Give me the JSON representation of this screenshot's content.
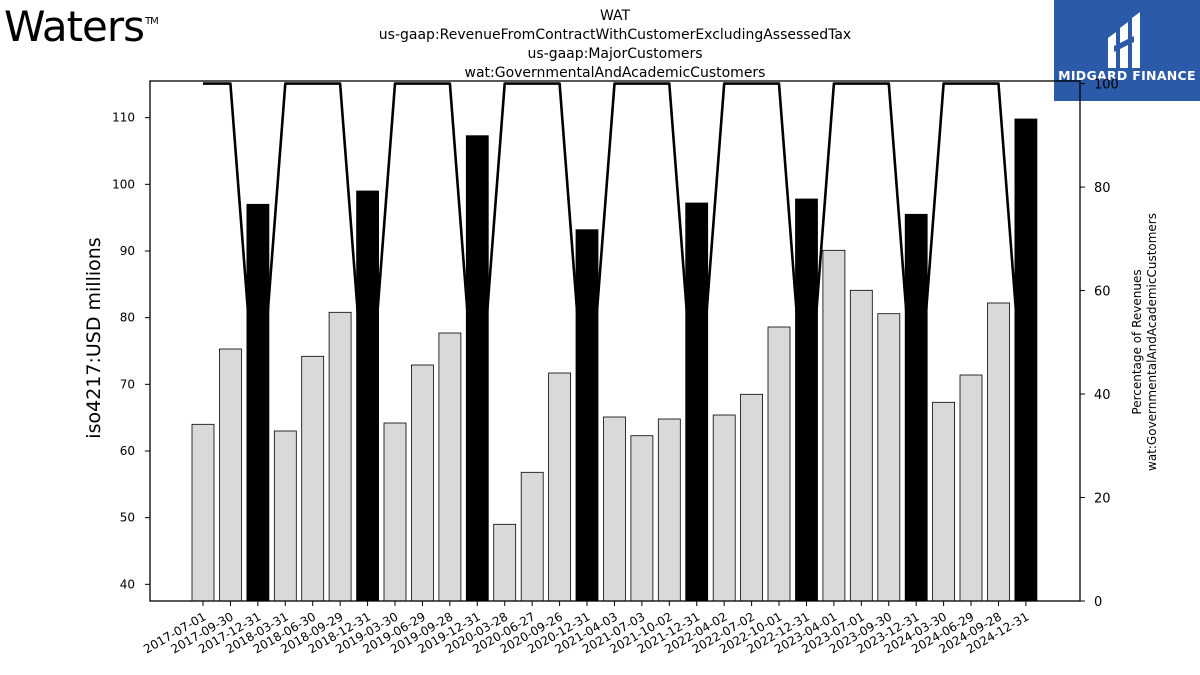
{
  "header": {
    "logo_text": "Waters",
    "logo_mark": "TM",
    "title_lines": [
      "WAT",
      "us-gaap:RevenueFromContractWithCustomerExcludingAssessedTax",
      "us-gaap:MajorCustomers",
      "wat:GovernmentalAndAcademicCustomers"
    ]
  },
  "brand": {
    "name": "MIDGARD FINANCE",
    "background": "#2b5aa8"
  },
  "chart_data": {
    "type": "bar",
    "ylabel": "iso4217:USD  millions",
    "y2label": [
      "Percentage of Revenues",
      "wat:GovernmentalAndAcademicCustomers"
    ],
    "ylim": [
      37.5,
      115.5
    ],
    "yticks": [
      40,
      50,
      60,
      70,
      80,
      90,
      100,
      110
    ],
    "y2lim": [
      0,
      100.5
    ],
    "y2ticks": [
      0,
      20,
      40,
      60,
      80,
      100
    ],
    "colors": {
      "quarter_bar": "#d9d9d9",
      "annual_bar": "#000000",
      "line": "#000000"
    },
    "categories": [
      "2017-07-01",
      "2017-09-30",
      "2017-12-31",
      "2018-03-31",
      "2018-06-30",
      "2018-09-29",
      "2018-12-31",
      "2019-03-30",
      "2019-06-29",
      "2019-09-28",
      "2019-12-31",
      "2020-03-28",
      "2020-06-27",
      "2020-09-26",
      "2020-12-31",
      "2021-04-03",
      "2021-07-03",
      "2021-10-02",
      "2021-12-31",
      "2022-04-02",
      "2022-07-02",
      "2022-10-01",
      "2022-12-31",
      "2023-04-01",
      "2023-07-01",
      "2023-09-30",
      "2023-12-31",
      "2024-03-30",
      "2024-06-29",
      "2024-09-28",
      "2024-12-31"
    ],
    "values": [
      64.0,
      75.3,
      97.0,
      63.0,
      74.2,
      80.8,
      99.0,
      64.2,
      72.9,
      77.7,
      107.3,
      49.0,
      56.8,
      71.7,
      93.2,
      65.1,
      62.3,
      64.8,
      97.2,
      65.4,
      68.5,
      78.6,
      97.8,
      90.1,
      84.1,
      80.6,
      95.5,
      67.3,
      71.4,
      82.2,
      109.8
    ],
    "annual": [
      false,
      false,
      true,
      false,
      false,
      false,
      true,
      false,
      false,
      false,
      true,
      false,
      false,
      false,
      true,
      false,
      false,
      false,
      true,
      false,
      false,
      false,
      true,
      false,
      false,
      false,
      true,
      false,
      false,
      false,
      true
    ],
    "percentage_line": [
      100,
      100,
      31,
      100,
      100,
      100,
      31,
      100,
      100,
      100,
      31,
      100,
      100,
      100,
      31,
      100,
      100,
      100,
      31,
      100,
      100,
      100,
      31,
      100,
      100,
      100,
      31,
      100,
      100,
      100,
      31
    ]
  }
}
